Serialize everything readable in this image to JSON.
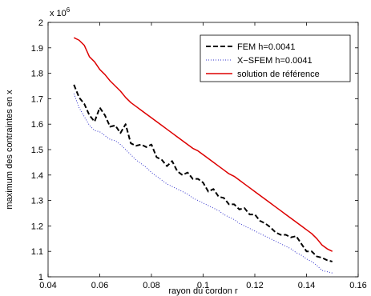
{
  "chart_data": {
    "type": "line",
    "xlabel": "rayon du cordon r",
    "ylabel": "maximum des contraintes en x",
    "y_exponent_label": "x 10",
    "y_exponent_power": "6",
    "xlim": [
      0.04,
      0.16
    ],
    "ylim": [
      1000000,
      2000000
    ],
    "xticks": [
      0.04,
      0.06,
      0.08,
      0.1,
      0.12,
      0.14,
      0.16
    ],
    "xtick_labels": [
      "0.04",
      "0.06",
      "0.08",
      "0.1",
      "0.12",
      "0.14",
      "0.16"
    ],
    "yticks": [
      1000000,
      1100000,
      1200000,
      1300000,
      1400000,
      1500000,
      1600000,
      1700000,
      1800000,
      1900000,
      2000000
    ],
    "ytick_labels": [
      "1",
      "1.1",
      "1.2",
      "1.3",
      "1.4",
      "1.5",
      "1.6",
      "1.7",
      "1.8",
      "1.9",
      "2"
    ],
    "grid": false,
    "legend_position": "top-right",
    "series": [
      {
        "name": "FEM h=0.0041",
        "color": "#000000",
        "style": "dashed",
        "x": [
          0.05,
          0.052,
          0.054,
          0.056,
          0.058,
          0.06,
          0.062,
          0.064,
          0.066,
          0.068,
          0.07,
          0.072,
          0.074,
          0.076,
          0.078,
          0.08,
          0.082,
          0.084,
          0.086,
          0.088,
          0.09,
          0.092,
          0.094,
          0.096,
          0.098,
          0.1,
          0.102,
          0.104,
          0.106,
          0.108,
          0.11,
          0.112,
          0.114,
          0.116,
          0.118,
          0.12,
          0.122,
          0.124,
          0.126,
          0.128,
          0.13,
          0.132,
          0.134,
          0.136,
          0.138,
          0.14,
          0.142,
          0.144,
          0.146,
          0.148,
          0.15
        ],
        "y": [
          1755000,
          1705000,
          1680000,
          1635000,
          1610000,
          1665000,
          1635000,
          1590000,
          1595000,
          1565000,
          1600000,
          1525000,
          1515000,
          1520000,
          1510000,
          1520000,
          1470000,
          1460000,
          1435000,
          1455000,
          1415000,
          1400000,
          1410000,
          1385000,
          1385000,
          1370000,
          1335000,
          1345000,
          1315000,
          1310000,
          1285000,
          1285000,
          1265000,
          1270000,
          1245000,
          1245000,
          1220000,
          1210000,
          1195000,
          1175000,
          1165000,
          1165000,
          1155000,
          1160000,
          1130000,
          1100000,
          1100000,
          1080000,
          1075000,
          1065000,
          1060000
        ]
      },
      {
        "name": "X−SFEM h=0.0041",
        "color": "#3333cc",
        "style": "dotted",
        "x": [
          0.05,
          0.052,
          0.054,
          0.056,
          0.058,
          0.06,
          0.062,
          0.064,
          0.066,
          0.068,
          0.07,
          0.072,
          0.074,
          0.076,
          0.078,
          0.08,
          0.082,
          0.084,
          0.086,
          0.088,
          0.09,
          0.092,
          0.094,
          0.096,
          0.098,
          0.1,
          0.102,
          0.104,
          0.106,
          0.108,
          0.11,
          0.112,
          0.114,
          0.116,
          0.118,
          0.12,
          0.122,
          0.124,
          0.126,
          0.128,
          0.13,
          0.132,
          0.134,
          0.136,
          0.138,
          0.14,
          0.142,
          0.144,
          0.146,
          0.148,
          0.15
        ],
        "y": [
          1720000,
          1665000,
          1630000,
          1595000,
          1575000,
          1570000,
          1555000,
          1540000,
          1535000,
          1520000,
          1500000,
          1480000,
          1460000,
          1445000,
          1430000,
          1410000,
          1395000,
          1380000,
          1365000,
          1355000,
          1345000,
          1335000,
          1325000,
          1310000,
          1300000,
          1290000,
          1280000,
          1270000,
          1260000,
          1245000,
          1235000,
          1225000,
          1210000,
          1200000,
          1190000,
          1180000,
          1170000,
          1160000,
          1150000,
          1140000,
          1130000,
          1120000,
          1110000,
          1095000,
          1085000,
          1070000,
          1060000,
          1045000,
          1025000,
          1020000,
          1015000
        ]
      },
      {
        "name": "solution de référence",
        "color": "#dd0000",
        "style": "solid",
        "x": [
          0.05,
          0.052,
          0.054,
          0.056,
          0.058,
          0.06,
          0.062,
          0.064,
          0.066,
          0.068,
          0.07,
          0.072,
          0.074,
          0.076,
          0.078,
          0.08,
          0.082,
          0.084,
          0.086,
          0.088,
          0.09,
          0.092,
          0.094,
          0.096,
          0.098,
          0.1,
          0.102,
          0.104,
          0.106,
          0.108,
          0.11,
          0.112,
          0.114,
          0.116,
          0.118,
          0.12,
          0.122,
          0.124,
          0.126,
          0.128,
          0.13,
          0.132,
          0.134,
          0.136,
          0.138,
          0.14,
          0.142,
          0.144,
          0.146,
          0.148,
          0.15
        ],
        "y": [
          1940000,
          1930000,
          1910000,
          1865000,
          1845000,
          1815000,
          1795000,
          1770000,
          1750000,
          1730000,
          1705000,
          1685000,
          1670000,
          1655000,
          1640000,
          1625000,
          1610000,
          1595000,
          1580000,
          1565000,
          1550000,
          1535000,
          1520000,
          1505000,
          1495000,
          1480000,
          1465000,
          1450000,
          1435000,
          1420000,
          1405000,
          1395000,
          1380000,
          1365000,
          1350000,
          1335000,
          1320000,
          1305000,
          1290000,
          1275000,
          1260000,
          1245000,
          1230000,
          1215000,
          1200000,
          1185000,
          1170000,
          1150000,
          1125000,
          1110000,
          1100000
        ]
      }
    ]
  }
}
